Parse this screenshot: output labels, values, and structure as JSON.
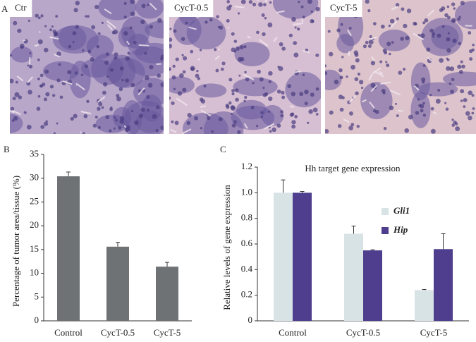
{
  "panel_labels": [
    "A",
    "B",
    "C"
  ],
  "images": [
    {
      "label": "Ctr"
    },
    {
      "label": "CycT-0.5"
    },
    {
      "label": "CycT-5"
    }
  ],
  "chart_data": [
    {
      "type": "bar",
      "ylabel": "Percentage of tumor area/tissue (%)",
      "categories": [
        "Control",
        "CycT-0.5",
        "CycT-5"
      ],
      "values": [
        30.4,
        15.6,
        11.4
      ],
      "errors": [
        0.9,
        0.9,
        0.9
      ],
      "color": "#6e7275",
      "ylim": [
        0,
        35
      ],
      "yticks": [
        0,
        5,
        10,
        15,
        20,
        25,
        30,
        35
      ]
    },
    {
      "type": "grouped-bar",
      "title": "Hh target gene expression",
      "ylabel": "Relative levels of gene expression",
      "categories": [
        "Control",
        "CycT-0.5",
        "CycT-5"
      ],
      "series": [
        {
          "name": "Gli1",
          "color": "#d8e3e5",
          "values": [
            1.0,
            0.68,
            0.24
          ],
          "errors": [
            0.1,
            0.06,
            0.005
          ]
        },
        {
          "name": "Hip",
          "color": "#4e3e8d",
          "values": [
            1.0,
            0.55,
            0.56
          ],
          "errors": [
            0.01,
            0.005,
            0.12
          ]
        }
      ],
      "ylim": [
        0,
        1.2
      ],
      "yticks": [
        0,
        0.2,
        0.4,
        0.6,
        0.8,
        {
          "value": 1.0,
          "label": "1.0"
        },
        1.2
      ]
    }
  ]
}
